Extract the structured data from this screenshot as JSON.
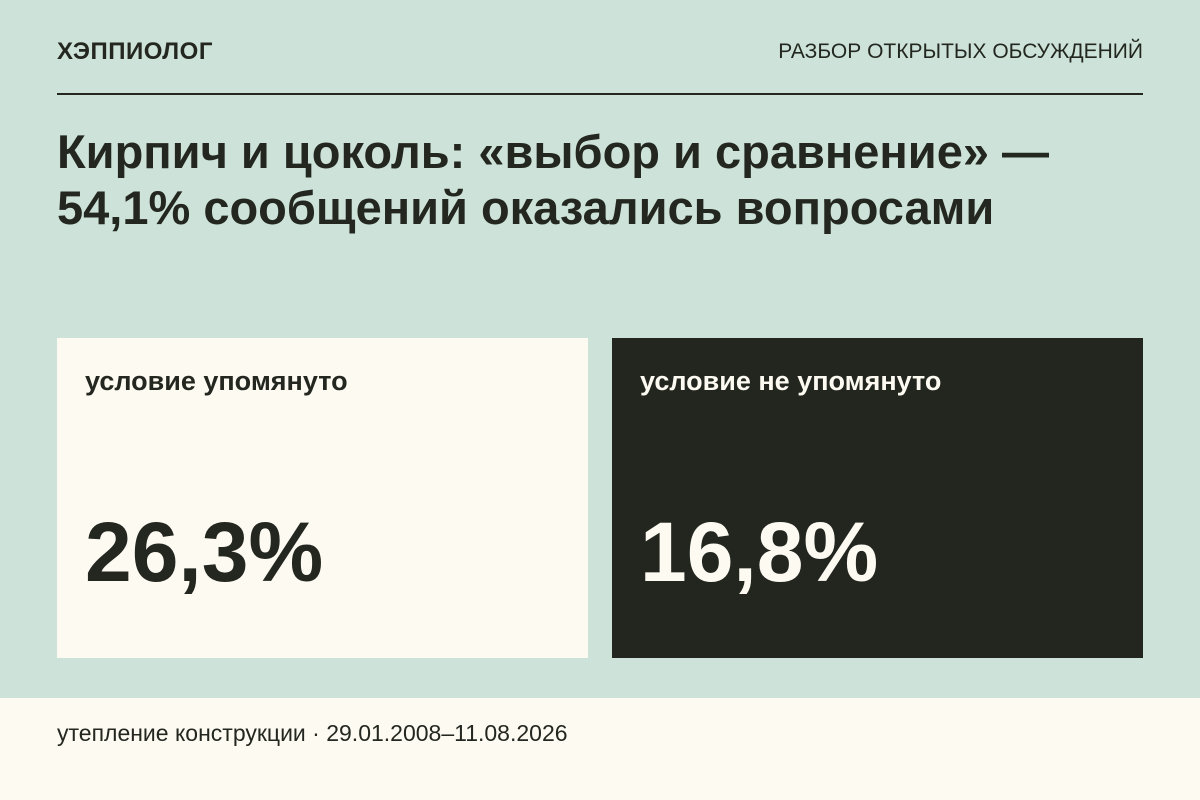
{
  "header": {
    "brand": "ХЭППИОЛОГ",
    "section": "РАЗБОР ОТКРЫТЫХ ОБСУЖДЕНИЙ"
  },
  "title": "Кирпич и цоколь: «выбор и сравнение» — 54,1% сообщений оказались вопросами",
  "cards": [
    {
      "label": "условие упомянуто",
      "value": "26,3%"
    },
    {
      "label": "условие не упомянуто",
      "value": "16,8%"
    }
  ],
  "footer": "утепление конструкции · 29.01.2008–11.08.2026"
}
